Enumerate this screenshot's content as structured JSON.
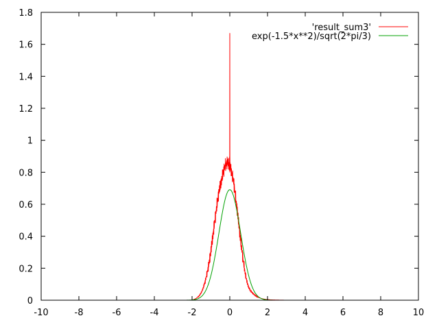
{
  "chart_data": {
    "type": "line",
    "title": "",
    "xlabel": "",
    "ylabel": "",
    "xlim": [
      -10,
      10
    ],
    "ylim": [
      0,
      1.8
    ],
    "x_ticks": [
      -10,
      -8,
      -6,
      -4,
      -2,
      0,
      2,
      4,
      6,
      8,
      10
    ],
    "y_ticks": [
      0,
      0.2,
      0.4,
      0.6,
      0.8,
      1,
      1.2,
      1.4,
      1.6,
      1.8
    ],
    "grid": false,
    "legend_position": "top-right",
    "series": [
      {
        "name": "'result_sum3'",
        "color": "#ff0000",
        "style": "line",
        "x": [
          -2.2,
          -2.0,
          -1.9,
          -1.8,
          -1.7,
          -1.6,
          -1.5,
          -1.4,
          -1.3,
          -1.2,
          -1.1,
          -1.0,
          -0.9,
          -0.8,
          -0.7,
          -0.6,
          -0.5,
          -0.4,
          -0.35,
          -0.3,
          -0.25,
          -0.2,
          -0.15,
          -0.1,
          -0.05,
          -0.02,
          -0.005,
          0.0,
          0.005,
          0.02,
          0.05,
          0.1,
          0.15,
          0.2,
          0.25,
          0.3,
          0.4,
          0.5,
          0.6,
          0.7,
          0.8,
          0.9,
          1.0,
          1.1,
          1.2,
          1.3,
          1.4,
          1.5,
          1.7,
          1.9,
          2.2,
          2.5,
          3.0
        ],
        "y": [
          0.0,
          0.0,
          0.005,
          0.01,
          0.02,
          0.03,
          0.05,
          0.08,
          0.12,
          0.17,
          0.23,
          0.31,
          0.4,
          0.49,
          0.58,
          0.66,
          0.72,
          0.77,
          0.8,
          0.82,
          0.84,
          0.85,
          0.86,
          0.86,
          0.85,
          0.84,
          0.9,
          1.67,
          0.9,
          0.83,
          0.82,
          0.8,
          0.77,
          0.74,
          0.7,
          0.65,
          0.56,
          0.45,
          0.35,
          0.26,
          0.18,
          0.12,
          0.08,
          0.06,
          0.045,
          0.035,
          0.025,
          0.018,
          0.01,
          0.005,
          0.002,
          0.001,
          0.0
        ]
      },
      {
        "name": "exp(-1.5*x**2)/sqrt(2*pi/3)",
        "color": "#00a000",
        "style": "line",
        "function": "gaussian",
        "amplitude": 0.691,
        "coefficient": 1.5,
        "x_range": [
          -10,
          10
        ]
      }
    ]
  }
}
